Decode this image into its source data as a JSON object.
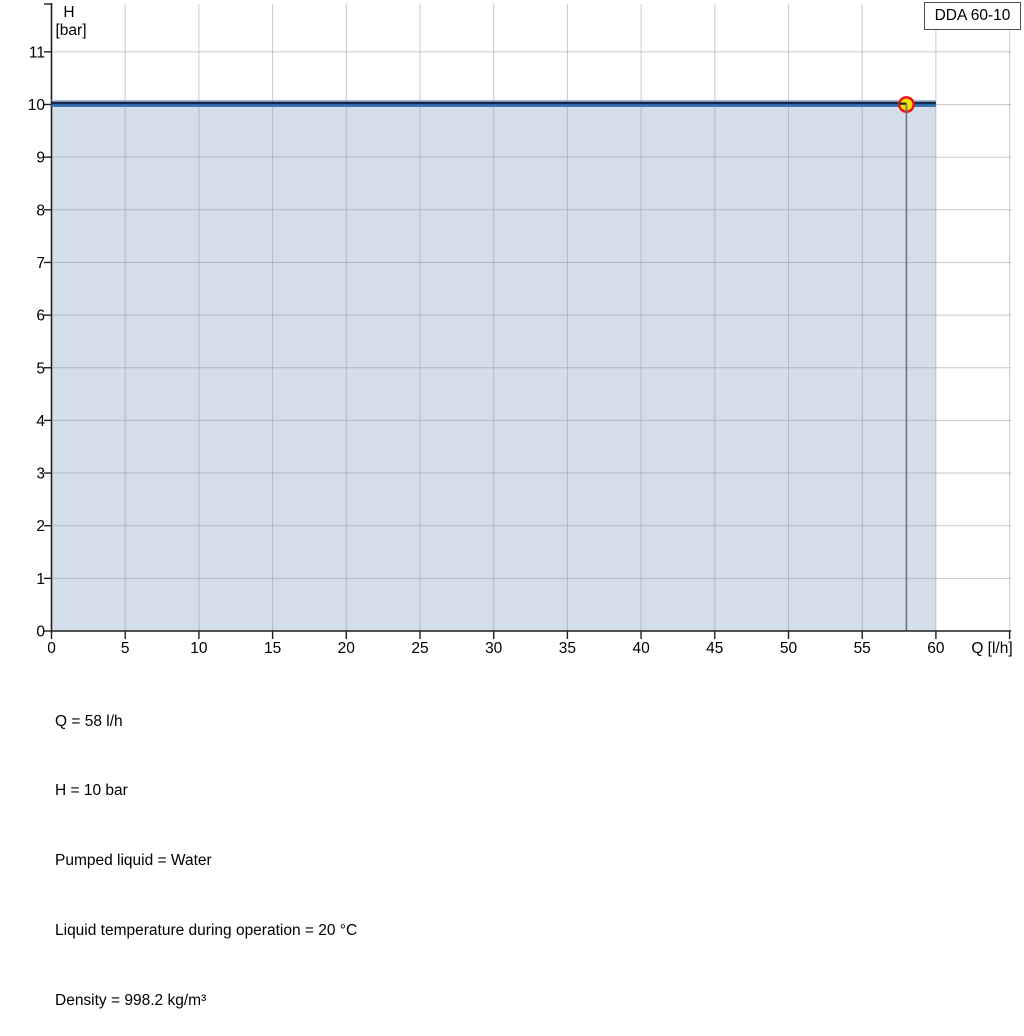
{
  "window": {
    "background": "#ffffff"
  },
  "chart_data": {
    "type": "area",
    "title": "DDA 60-10",
    "xlabel": "Q [l/h]",
    "ylabel_lines": [
      "H",
      "[bar]"
    ],
    "x_axis": {
      "min": 0,
      "max": 65,
      "tick_step": 5,
      "labeled_max": 60,
      "labels": [
        0,
        5,
        10,
        15,
        20,
        25,
        30,
        35,
        40,
        45,
        50,
        55,
        60
      ]
    },
    "y_axis": {
      "min": 0,
      "max": 12,
      "tick_step": 1,
      "labeled_max": 11,
      "labels": [
        0,
        1,
        2,
        3,
        4,
        5,
        6,
        7,
        8,
        9,
        10,
        11
      ]
    },
    "grid": true,
    "legend_position": "top-right",
    "series": [
      {
        "name": "pump head curve",
        "points": [
          [
            0,
            10
          ],
          [
            60,
            10
          ]
        ]
      }
    ],
    "area": {
      "x0": 0,
      "x1": 60,
      "h": 10,
      "meaning": "operating range fill under curve"
    },
    "duty_point": {
      "q": 58,
      "h": 10
    }
  },
  "colors": {
    "area_fill": "#b4c7db",
    "area_fill_opacity": 0.58,
    "gridline": "rgba(150,150,150,0.5)",
    "axis": "#1f1f1f",
    "curve_dark": "#15294d",
    "curve_blue": "#2e6cae",
    "curve_highlight": "#a9c2de",
    "duty_line": "#6e7681",
    "marker_fill": "#ffe000",
    "marker_stroke": "#ee1111",
    "box_border": "#4d4d4d",
    "text": "#000000"
  },
  "info_panel": {
    "lines": [
      "Q = 58 l/h",
      "H = 10 bar",
      "Pumped liquid = Water",
      "Liquid temperature during operation = 20 °C",
      "Density = 998.2 kg/m³"
    ]
  }
}
